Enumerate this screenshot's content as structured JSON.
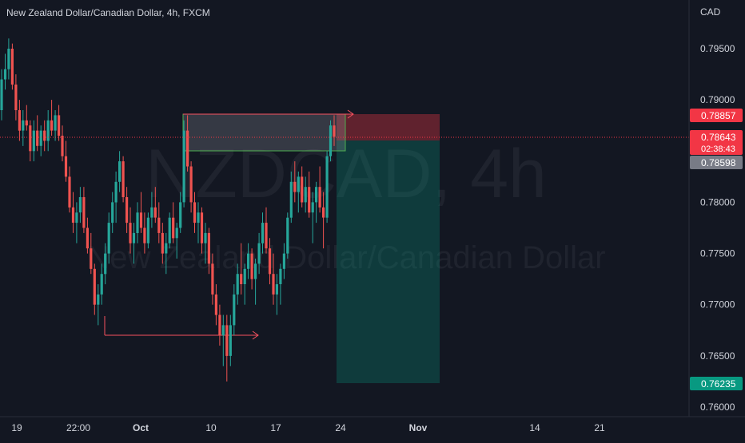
{
  "legend": {
    "title": "New Zealand Dollar/Canadian Dollar, 4h, FXCM"
  },
  "watermark": {
    "symbol": "NZDCAD, 4h",
    "description": "New Zealand Dollar/Canadian Dollar"
  },
  "price_scale": {
    "currency": "CAD",
    "ticks": [
      "0.79500",
      "0.79000",
      "0.78500",
      "0.78000",
      "0.77500",
      "0.77000",
      "0.76500",
      "0.76000"
    ],
    "tick_values": [
      0.795,
      0.79,
      0.785,
      0.78,
      0.775,
      0.77,
      0.765,
      0.76
    ]
  },
  "time_scale": {
    "labels": [
      "19",
      "22:00",
      "Oct",
      "10",
      "17",
      "24",
      "Nov",
      "14",
      "21"
    ]
  },
  "badges": {
    "stop_loss": {
      "label": "0.78857",
      "value": 0.78857,
      "color": "#f23645"
    },
    "last_price": {
      "label": "0.78643",
      "value": 0.78643,
      "countdown": "02:38:43",
      "color": "#f23645"
    },
    "entry": {
      "label": "0.78598",
      "value": 0.78598,
      "color": "#787b86"
    },
    "take_profit": {
      "label": "0.76235",
      "value": 0.76235,
      "color": "#089981"
    }
  },
  "colors": {
    "background": "#131722",
    "up_candle": "#26a69a",
    "down_candle": "#ef5350",
    "annotation_arrow": "#f7525f",
    "rectangle_border": "#4caf50"
  },
  "chart_data": {
    "type": "candlestick",
    "y_range": [
      0.7595,
      0.7975
    ],
    "position_tool": {
      "direction": "short",
      "entry": 0.78598,
      "stop": 0.78857,
      "target": 0.76235
    },
    "levels": {
      "zone_top": 0.7885,
      "zone_bottom": 0.785,
      "swing_low": 0.7672
    },
    "candles": [
      [
        0.789,
        0.793,
        0.788,
        0.792
      ],
      [
        0.792,
        0.7945,
        0.791,
        0.793
      ],
      [
        0.793,
        0.796,
        0.792,
        0.795
      ],
      [
        0.795,
        0.7955,
        0.791,
        0.7915
      ],
      [
        0.7915,
        0.7925,
        0.788,
        0.789
      ],
      [
        0.789,
        0.79,
        0.786,
        0.787
      ],
      [
        0.787,
        0.789,
        0.7855,
        0.788
      ],
      [
        0.788,
        0.7895,
        0.787,
        0.7875
      ],
      [
        0.7875,
        0.788,
        0.784,
        0.785
      ],
      [
        0.785,
        0.788,
        0.784,
        0.787
      ],
      [
        0.787,
        0.7885,
        0.785,
        0.7855
      ],
      [
        0.7855,
        0.7875,
        0.7845,
        0.787
      ],
      [
        0.787,
        0.788,
        0.785,
        0.786
      ],
      [
        0.786,
        0.789,
        0.785,
        0.788
      ],
      [
        0.788,
        0.79,
        0.7865,
        0.787
      ],
      [
        0.787,
        0.789,
        0.786,
        0.7885
      ],
      [
        0.7885,
        0.7895,
        0.786,
        0.7865
      ],
      [
        0.7865,
        0.7875,
        0.784,
        0.7845
      ],
      [
        0.7845,
        0.786,
        0.782,
        0.7825
      ],
      [
        0.7825,
        0.7835,
        0.779,
        0.7795
      ],
      [
        0.7795,
        0.781,
        0.777,
        0.778
      ],
      [
        0.778,
        0.78,
        0.776,
        0.779
      ],
      [
        0.779,
        0.7815,
        0.778,
        0.7805
      ],
      [
        0.7805,
        0.7815,
        0.777,
        0.7775
      ],
      [
        0.7775,
        0.7785,
        0.775,
        0.7755
      ],
      [
        0.7755,
        0.777,
        0.773,
        0.7735
      ],
      [
        0.7735,
        0.774,
        0.769,
        0.77
      ],
      [
        0.77,
        0.772,
        0.768,
        0.771
      ],
      [
        0.771,
        0.774,
        0.77,
        0.773
      ],
      [
        0.773,
        0.776,
        0.772,
        0.775
      ],
      [
        0.775,
        0.779,
        0.774,
        0.778
      ],
      [
        0.778,
        0.781,
        0.777,
        0.78
      ],
      [
        0.78,
        0.783,
        0.778,
        0.782
      ],
      [
        0.782,
        0.785,
        0.781,
        0.784
      ],
      [
        0.784,
        0.7845,
        0.78,
        0.7805
      ],
      [
        0.7805,
        0.7815,
        0.777,
        0.778
      ],
      [
        0.778,
        0.7795,
        0.775,
        0.776
      ],
      [
        0.776,
        0.778,
        0.774,
        0.777
      ],
      [
        0.777,
        0.78,
        0.776,
        0.779
      ],
      [
        0.779,
        0.781,
        0.777,
        0.7775
      ],
      [
        0.7775,
        0.779,
        0.775,
        0.776
      ],
      [
        0.776,
        0.779,
        0.7755,
        0.7785
      ],
      [
        0.7785,
        0.781,
        0.7775,
        0.7795
      ],
      [
        0.7795,
        0.7815,
        0.778,
        0.7785
      ],
      [
        0.7785,
        0.78,
        0.776,
        0.777
      ],
      [
        0.777,
        0.778,
        0.774,
        0.775
      ],
      [
        0.775,
        0.777,
        0.773,
        0.776
      ],
      [
        0.776,
        0.779,
        0.7755,
        0.7785
      ],
      [
        0.7785,
        0.78,
        0.776,
        0.7765
      ],
      [
        0.7765,
        0.778,
        0.7745,
        0.7775
      ],
      [
        0.7775,
        0.781,
        0.777,
        0.78
      ],
      [
        0.78,
        0.788,
        0.7795,
        0.787
      ],
      [
        0.787,
        0.7885,
        0.783,
        0.7835
      ],
      [
        0.7835,
        0.784,
        0.779,
        0.78
      ],
      [
        0.78,
        0.781,
        0.777,
        0.778
      ],
      [
        0.778,
        0.78,
        0.776,
        0.779
      ],
      [
        0.779,
        0.7795,
        0.775,
        0.776
      ],
      [
        0.776,
        0.778,
        0.774,
        0.777
      ],
      [
        0.777,
        0.7775,
        0.773,
        0.774
      ],
      [
        0.774,
        0.775,
        0.77,
        0.771
      ],
      [
        0.771,
        0.772,
        0.768,
        0.769
      ],
      [
        0.769,
        0.77,
        0.766,
        0.767
      ],
      [
        0.767,
        0.769,
        0.764,
        0.768
      ],
      [
        0.768,
        0.769,
        0.7625,
        0.765
      ],
      [
        0.765,
        0.769,
        0.764,
        0.768
      ],
      [
        0.768,
        0.772,
        0.767,
        0.771
      ],
      [
        0.771,
        0.774,
        0.77,
        0.773
      ],
      [
        0.773,
        0.776,
        0.771,
        0.772
      ],
      [
        0.772,
        0.774,
        0.77,
        0.7735
      ],
      [
        0.7735,
        0.776,
        0.7725,
        0.775
      ],
      [
        0.775,
        0.7755,
        0.7715,
        0.7725
      ],
      [
        0.7725,
        0.7745,
        0.77,
        0.774
      ],
      [
        0.774,
        0.777,
        0.773,
        0.776
      ],
      [
        0.776,
        0.779,
        0.775,
        0.778
      ],
      [
        0.778,
        0.7795,
        0.775,
        0.7755
      ],
      [
        0.7755,
        0.7765,
        0.772,
        0.773
      ],
      [
        0.773,
        0.775,
        0.77,
        0.771
      ],
      [
        0.771,
        0.773,
        0.769,
        0.772
      ],
      [
        0.772,
        0.774,
        0.77,
        0.7735
      ],
      [
        0.7735,
        0.776,
        0.7725,
        0.775
      ],
      [
        0.775,
        0.779,
        0.7745,
        0.7785
      ],
      [
        0.7785,
        0.783,
        0.778,
        0.782
      ],
      [
        0.782,
        0.784,
        0.78,
        0.781
      ],
      [
        0.781,
        0.783,
        0.779,
        0.7825
      ],
      [
        0.7825,
        0.7835,
        0.7795,
        0.78
      ],
      [
        0.78,
        0.7825,
        0.779,
        0.7815
      ],
      [
        0.7815,
        0.783,
        0.7785,
        0.779
      ],
      [
        0.779,
        0.781,
        0.776,
        0.78
      ],
      [
        0.78,
        0.782,
        0.778,
        0.7815
      ],
      [
        0.7815,
        0.7835,
        0.779,
        0.7795
      ],
      [
        0.7795,
        0.781,
        0.7755,
        0.7785
      ],
      [
        0.7785,
        0.785,
        0.778,
        0.7845
      ],
      [
        0.7845,
        0.788,
        0.784,
        0.7875
      ],
      [
        0.7875,
        0.7885,
        0.7855,
        0.7864
      ]
    ]
  }
}
